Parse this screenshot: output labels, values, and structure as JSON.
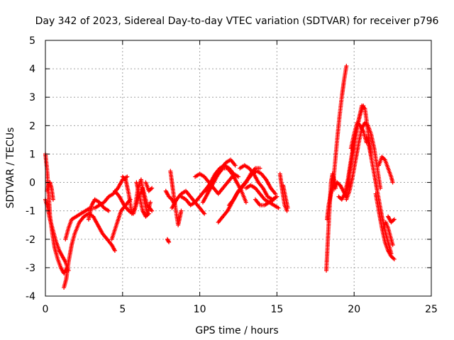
{
  "chart_data": {
    "type": "scatter",
    "title": "Day 342 of 2023, Sidereal Day-to-day VTEC variation (SDTVAR) for receiver p796",
    "xlabel": "GPS time / hours",
    "ylabel": "SDTVAR / TECUs",
    "xlim": [
      0,
      25
    ],
    "ylim": [
      -4,
      5
    ],
    "xticks": [
      0,
      5,
      10,
      15,
      20,
      25
    ],
    "yticks": [
      -4,
      -3,
      -2,
      -1,
      0,
      1,
      2,
      3,
      4,
      5
    ],
    "grid": true,
    "marker": "+",
    "marker_color": "#ff0000",
    "series": [
      {
        "name": "SDTVAR",
        "tracks": [
          {
            "x": [
              0.0,
              0.1,
              0.2,
              0.3,
              0.45,
              0.6,
              0.8,
              1.0,
              1.2,
              1.4
            ],
            "y": [
              1.0,
              0.5,
              -0.3,
              -1.2,
              -1.8,
              -2.3,
              -2.7,
              -3.0,
              -3.2,
              -3.0
            ]
          },
          {
            "x": [
              0.0,
              0.15,
              0.3,
              0.5,
              0.7,
              0.9,
              1.1,
              1.3,
              1.5
            ],
            "y": [
              -0.6,
              -0.9,
              -1.3,
              -1.7,
              -2.1,
              -2.4,
              -2.6,
              -2.8,
              -3.1
            ]
          },
          {
            "x": [
              0.1,
              0.2,
              0.3,
              0.4,
              0.5
            ],
            "y": [
              -0.3,
              -0.1,
              0.0,
              -0.2,
              -0.6
            ]
          },
          {
            "x": [
              1.2,
              1.35,
              1.5,
              1.7,
              1.9,
              2.2,
              2.5,
              2.8,
              3.1,
              3.4,
              3.7,
              4.0,
              4.3,
              4.5
            ],
            "y": [
              -3.7,
              -3.4,
              -2.8,
              -2.2,
              -1.8,
              -1.4,
              -1.2,
              -1.1,
              -1.2,
              -1.5,
              -1.8,
              -2.0,
              -2.2,
              -2.4
            ]
          },
          {
            "x": [
              1.3,
              1.5,
              1.7,
              2.0,
              2.3,
              2.6,
              2.9,
              3.2,
              3.5,
              3.8,
              4.1,
              4.4,
              4.7,
              5.0,
              5.3
            ],
            "y": [
              -2.0,
              -1.6,
              -1.3,
              -1.2,
              -1.1,
              -1.0,
              -0.9,
              -0.9,
              -0.8,
              -0.7,
              -0.5,
              -0.4,
              -0.2,
              0.1,
              0.2
            ]
          },
          {
            "x": [
              2.8,
              3.0,
              3.2,
              3.5,
              3.8,
              4.1
            ],
            "y": [
              -1.3,
              -0.8,
              -0.6,
              -0.7,
              -0.9,
              -1.0
            ]
          },
          {
            "x": [
              4.3,
              4.6,
              4.9,
              5.2,
              5.5
            ],
            "y": [
              -2.0,
              -1.5,
              -1.0,
              -0.8,
              -0.6
            ]
          },
          {
            "x": [
              4.5,
              4.8,
              5.1,
              5.4,
              5.7,
              6.0,
              6.3,
              6.6,
              6.9
            ],
            "y": [
              -0.3,
              -0.5,
              -0.8,
              -1.0,
              -1.1,
              -0.6,
              -0.2,
              -0.8,
              -1.0
            ]
          },
          {
            "x": [
              5.0,
              5.2,
              5.4,
              5.6,
              5.8,
              6.0,
              6.2,
              6.4,
              6.6,
              6.8
            ],
            "y": [
              0.2,
              0.1,
              -0.4,
              -1.1,
              -0.9,
              -0.2,
              0.1,
              -0.6,
              -1.1,
              -0.7
            ]
          },
          {
            "x": [
              5.9,
              6.1,
              6.3,
              6.5,
              6.7
            ],
            "y": [
              0.0,
              -0.5,
              -1.0,
              -1.2,
              -1.1
            ]
          },
          {
            "x": [
              6.5,
              6.7,
              6.9
            ],
            "y": [
              0.0,
              -0.3,
              -0.2
            ]
          },
          {
            "x": [
              7.8,
              8.0,
              8.2,
              8.4
            ],
            "y": [
              -0.3,
              -0.5,
              -0.6,
              -0.8
            ]
          },
          {
            "x": [
              7.9,
              8.0
            ],
            "y": [
              -2.0,
              -2.1
            ]
          },
          {
            "x": [
              8.1,
              8.25,
              8.4,
              8.6,
              8.8
            ],
            "y": [
              0.4,
              -0.2,
              -0.8,
              -1.5,
              -1.0
            ]
          },
          {
            "x": [
              8.2,
              8.5,
              8.8,
              9.1,
              9.4,
              9.7,
              10.0,
              10.3
            ],
            "y": [
              -0.9,
              -0.6,
              -0.4,
              -0.3,
              -0.5,
              -0.7,
              -0.9,
              -1.1
            ]
          },
          {
            "x": [
              8.8,
              9.1,
              9.4,
              9.7,
              10.0,
              10.3,
              10.6,
              10.9,
              11.2,
              11.5,
              11.8,
              12.1,
              12.4,
              12.7,
              13.0
            ],
            "y": [
              -0.5,
              -0.6,
              -0.8,
              -0.7,
              -0.5,
              -0.3,
              -0.1,
              0.1,
              0.3,
              0.5,
              0.5,
              0.3,
              0.0,
              -0.3,
              -0.7
            ]
          },
          {
            "x": [
              9.7,
              10.0,
              10.3,
              10.6,
              10.9,
              11.2,
              11.5,
              11.8,
              12.1
            ],
            "y": [
              0.2,
              0.3,
              0.2,
              0.0,
              -0.2,
              -0.4,
              -0.2,
              0.0,
              0.2
            ]
          },
          {
            "x": [
              10.2,
              10.5,
              10.8,
              11.1,
              11.4,
              11.7,
              12.0,
              12.3
            ],
            "y": [
              -0.7,
              -0.4,
              -0.1,
              0.2,
              0.5,
              0.7,
              0.8,
              0.6
            ]
          },
          {
            "x": [
              10.4,
              10.7,
              11.0,
              11.3,
              11.6,
              11.9,
              12.2,
              12.5
            ],
            "y": [
              -0.3,
              0.0,
              0.3,
              0.5,
              0.6,
              0.5,
              0.3,
              0.2
            ]
          },
          {
            "x": [
              11.2,
              11.5,
              11.8,
              12.1,
              12.4,
              12.7,
              13.0,
              13.3,
              13.6,
              13.9
            ],
            "y": [
              -1.4,
              -1.2,
              -1.0,
              -0.7,
              -0.4,
              -0.2,
              0.0,
              0.3,
              0.5,
              0.5
            ]
          },
          {
            "x": [
              11.9,
              12.2,
              12.5,
              12.8,
              13.1,
              13.4,
              13.7,
              14.0,
              14.3,
              14.6,
              14.9
            ],
            "y": [
              -0.8,
              -0.6,
              -0.3,
              -0.1,
              0.1,
              0.3,
              0.4,
              0.3,
              0.1,
              -0.2,
              -0.4
            ]
          },
          {
            "x": [
              12.6,
              12.9,
              13.2,
              13.5,
              13.8,
              14.1,
              14.4,
              14.7,
              15.0
            ],
            "y": [
              0.5,
              0.6,
              0.5,
              0.3,
              0.0,
              -0.2,
              -0.5,
              -0.6,
              -0.5
            ]
          },
          {
            "x": [
              13.0,
              13.3,
              13.6,
              13.9,
              14.2,
              14.5,
              14.8,
              15.1
            ],
            "y": [
              -0.2,
              -0.1,
              -0.2,
              -0.4,
              -0.6,
              -0.7,
              -0.8,
              -0.9
            ]
          },
          {
            "x": [
              13.6,
              13.9,
              14.2,
              14.5,
              14.8
            ],
            "y": [
              -0.6,
              -0.8,
              -0.8,
              -0.7,
              -0.6
            ]
          },
          {
            "x": [
              15.2,
              15.35,
              15.5,
              15.65
            ],
            "y": [
              0.3,
              -0.3,
              -0.8,
              -1.0
            ]
          },
          {
            "x": [
              15.4,
              15.55,
              15.7
            ],
            "y": [
              -0.1,
              -0.5,
              -0.9
            ]
          },
          {
            "x": [
              18.2,
              18.3,
              18.4,
              18.5,
              18.6,
              18.7,
              18.8
            ],
            "y": [
              -3.1,
              -2.0,
              -1.0,
              0.0,
              0.3,
              0.1,
              -0.2
            ]
          },
          {
            "x": [
              18.25,
              18.35,
              18.5,
              18.65
            ],
            "y": [
              -1.3,
              -0.8,
              -0.4,
              0.0
            ]
          },
          {
            "x": [
              18.6,
              18.75,
              18.9,
              19.05,
              19.2,
              19.35,
              19.5
            ],
            "y": [
              -0.3,
              0.6,
              1.5,
              2.3,
              3.0,
              3.6,
              4.1
            ]
          },
          {
            "x": [
              18.7,
              18.9,
              19.1,
              19.3,
              19.5,
              19.7,
              19.9,
              20.1,
              20.3,
              20.5,
              20.7,
              20.9,
              21.1
            ],
            "y": [
              -0.2,
              0.0,
              -0.1,
              -0.3,
              -0.5,
              0.3,
              1.0,
              1.6,
              2.2,
              2.7,
              2.6,
              1.8,
              1.0
            ]
          },
          {
            "x": [
              19.0,
              19.2,
              19.4,
              19.6,
              19.8,
              20.0,
              20.2,
              20.4,
              20.6
            ],
            "y": [
              -0.5,
              -0.6,
              -0.4,
              0.1,
              0.8,
              1.5,
              2.0,
              2.4,
              2.7
            ]
          },
          {
            "x": [
              19.5,
              19.7,
              19.9,
              20.1,
              20.3,
              20.5,
              20.7,
              20.9,
              21.1,
              21.3,
              21.5,
              21.7
            ],
            "y": [
              -0.6,
              -0.3,
              0.2,
              0.8,
              1.4,
              1.9,
              2.1,
              2.0,
              1.7,
              1.2,
              0.5,
              -0.2
            ]
          },
          {
            "x": [
              19.8,
              20.0,
              20.2,
              20.4,
              20.6,
              20.8
            ],
            "y": [
              1.2,
              1.7,
              2.1,
              2.0,
              1.8,
              1.4
            ]
          },
          {
            "x": [
              20.8,
              21.0,
              21.2,
              21.4,
              21.6,
              21.8,
              22.0,
              22.2,
              22.4
            ],
            "y": [
              1.6,
              1.2,
              0.6,
              0.0,
              -0.6,
              -1.2,
              -1.7,
              -2.1,
              -2.5
            ]
          },
          {
            "x": [
              21.4,
              21.6,
              21.8,
              22.0,
              22.2,
              22.4,
              22.6
            ],
            "y": [
              -0.4,
              -1.0,
              -1.6,
              -2.1,
              -2.4,
              -2.6,
              -2.7
            ]
          },
          {
            "x": [
              21.6,
              21.8,
              22.0,
              22.2,
              22.4,
              22.5
            ],
            "y": [
              0.6,
              0.9,
              0.8,
              0.5,
              0.2,
              0.0
            ]
          },
          {
            "x": [
              21.9,
              22.05,
              22.2,
              22.35,
              22.5
            ],
            "y": [
              -1.6,
              -1.4,
              -1.6,
              -1.9,
              -2.2
            ]
          },
          {
            "x": [
              22.2,
              22.4,
              22.6
            ],
            "y": [
              -1.2,
              -1.4,
              -1.3
            ]
          }
        ]
      }
    ]
  }
}
